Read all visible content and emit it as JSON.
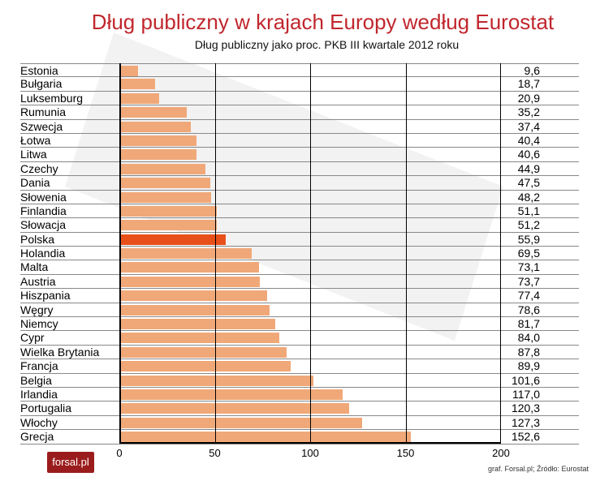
{
  "chart_data": {
    "type": "bar",
    "title": "Dług publiczny w krajach Europy według Eurostat",
    "subtitle": "Dług publiczny jako proc. PKB III kwartale 2012 roku",
    "categories": [
      "Estonia",
      "Bułgaria",
      "Luksemburg",
      "Rumunia",
      "Szwecja",
      "Łotwa",
      "Litwa",
      "Czechy",
      "Dania",
      "Słowenia",
      "Finlandia",
      "Słowacja",
      "Polska",
      "Holandia",
      "Malta",
      "Austria",
      "Hiszpania",
      "Węgry",
      "Niemcy",
      "Cypr",
      "Wielka Brytania",
      "Francja",
      "Belgia",
      "Irlandia",
      "Portugalia",
      "Włochy",
      "Grecja"
    ],
    "values": [
      9.6,
      18.7,
      20.9,
      35.2,
      37.4,
      40.4,
      40.6,
      44.9,
      47.5,
      48.2,
      51.1,
      51.2,
      55.9,
      69.5,
      73.1,
      73.7,
      77.4,
      78.6,
      81.7,
      84.0,
      87.8,
      89.9,
      101.6,
      117.0,
      120.3,
      127.3,
      152.6
    ],
    "value_labels": [
      "9,6",
      "18,7",
      "20,9",
      "35,2",
      "37,4",
      "40,4",
      "40,6",
      "44,9",
      "47,5",
      "48,2",
      "51,1",
      "51,2",
      "55,9",
      "69,5",
      "73,1",
      "73,7",
      "77,4",
      "78,6",
      "81,7",
      "84,0",
      "87,8",
      "89,9",
      "101,6",
      "117,0",
      "120,3",
      "127,3",
      "152,6"
    ],
    "xlim": [
      0,
      200
    ],
    "xticks": [
      "0",
      "50",
      "100",
      "150",
      "200"
    ],
    "highlight": "Polska",
    "colors": {
      "bar": "#f0a878",
      "highlight": "#e8501a",
      "title": "#c0272d"
    }
  },
  "logo": "forsal.pl",
  "source": "graf. Forsal.pl; Źródło: Eurostat"
}
